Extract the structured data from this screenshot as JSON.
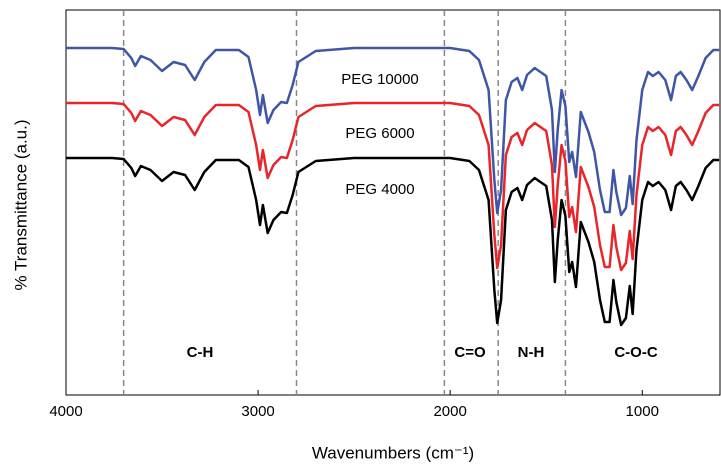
{
  "chart_data": {
    "type": "line",
    "x_label": "Wavenumbers (cm⁻¹)",
    "y_label": "% Transmittance (a.u.)",
    "xlim": [
      4000,
      590
    ],
    "xticks": [
      4000,
      3000,
      2000,
      1000
    ],
    "ylim": [
      0,
      385
    ],
    "reference_lines": [
      3700,
      2800,
      2030,
      1750,
      1400
    ],
    "annotations": [
      "C-H",
      "C=O",
      "N-H",
      "C-O-C"
    ],
    "x": [
      4000,
      3760,
      3700,
      3660,
      3640,
      3610,
      3560,
      3500,
      3440,
      3380,
      3330,
      3280,
      3220,
      3100,
      3050,
      3010,
      2990,
      2975,
      2950,
      2920,
      2880,
      2850,
      2820,
      2790,
      2700,
      2500,
      2000,
      1900,
      1850,
      1800,
      1770,
      1755,
      1735,
      1710,
      1680,
      1650,
      1625,
      1600,
      1560,
      1500,
      1470,
      1455,
      1440,
      1420,
      1400,
      1380,
      1365,
      1345,
      1320,
      1300,
      1280,
      1250,
      1220,
      1195,
      1170,
      1150,
      1135,
      1110,
      1085,
      1065,
      1050,
      1030,
      1000,
      970,
      945,
      915,
      880,
      850,
      825,
      800,
      770,
      740,
      710,
      670,
      630,
      600
    ],
    "series": [
      {
        "name": "PEG 10000",
        "color": "#3f56a6",
        "values": [
          347,
          347,
          346,
          337,
          329,
          339,
          335,
          324,
          333,
          330,
          315,
          333,
          345,
          345,
          338,
          305,
          280,
          300,
          272,
          285,
          293,
          292,
          310,
          333,
          344,
          347,
          347,
          344,
          335,
          305,
          215,
          182,
          205,
          295,
          313,
          317,
          305,
          320,
          327,
          319,
          285,
          223,
          265,
          305,
          289,
          233,
          243,
          218,
          283,
          273,
          263,
          243,
          205,
          183,
          183,
          225,
          203,
          180,
          187,
          219,
          191,
          255,
          305,
          323,
          319,
          323,
          315,
          295,
          319,
          323,
          315,
          305,
          318,
          337,
          345,
          345
        ]
      },
      {
        "name": "PEG 6000",
        "color": "#e8262a",
        "values": [
          292,
          292,
          291,
          282,
          274,
          284,
          280,
          269,
          278,
          275,
          260,
          278,
          290,
          290,
          283,
          250,
          225,
          245,
          217,
          230,
          238,
          237,
          255,
          278,
          289,
          292,
          292,
          289,
          280,
          250,
          160,
          127,
          150,
          240,
          258,
          262,
          250,
          265,
          272,
          264,
          230,
          168,
          210,
          250,
          234,
          178,
          188,
          163,
          228,
          218,
          208,
          188,
          150,
          128,
          128,
          170,
          148,
          125,
          132,
          164,
          136,
          200,
          250,
          268,
          264,
          268,
          260,
          240,
          264,
          268,
          260,
          250,
          263,
          282,
          290,
          290
        ]
      },
      {
        "name": "PEG 4000",
        "color": "#000000",
        "values": [
          237,
          237,
          236,
          227,
          219,
          229,
          225,
          214,
          223,
          220,
          205,
          223,
          235,
          235,
          228,
          195,
          170,
          190,
          162,
          175,
          183,
          182,
          200,
          223,
          234,
          237,
          237,
          234,
          225,
          195,
          105,
          72,
          95,
          185,
          203,
          207,
          195,
          210,
          217,
          209,
          175,
          113,
          155,
          195,
          179,
          123,
          133,
          108,
          173,
          163,
          153,
          133,
          95,
          73,
          73,
          115,
          93,
          70,
          77,
          109,
          81,
          145,
          195,
          213,
          209,
          213,
          205,
          185,
          209,
          213,
          205,
          195,
          208,
          227,
          235,
          235
        ]
      }
    ]
  }
}
